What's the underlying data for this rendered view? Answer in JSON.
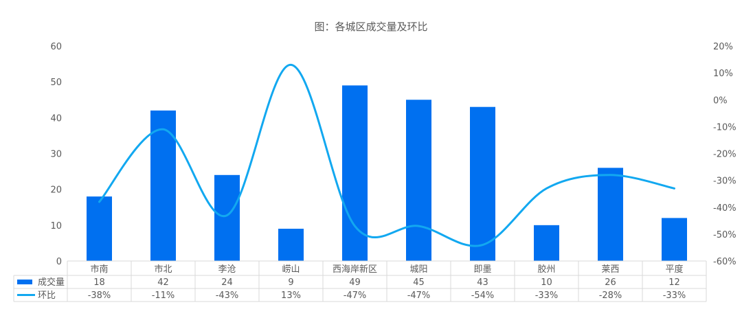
{
  "chart_data": {
    "type": "bar",
    "title": "图：各城区成交量及环比",
    "categories": [
      "市南",
      "市北",
      "李沧",
      "崂山",
      "西海岸新区",
      "城阳",
      "即墨",
      "胶州",
      "莱西",
      "平度"
    ],
    "series": [
      {
        "name": "成交量",
        "type": "bar",
        "axis": "left",
        "color": "#0070f0",
        "values": [
          18,
          42,
          24,
          9,
          49,
          45,
          43,
          10,
          26,
          12
        ]
      },
      {
        "name": "环比",
        "type": "line",
        "axis": "right",
        "color": "#12a8f0",
        "smooth": true,
        "values": [
          -0.38,
          -0.11,
          -0.43,
          0.13,
          -0.47,
          -0.47,
          -0.54,
          -0.33,
          -0.28,
          -0.33
        ],
        "labels": [
          "-38%",
          "-11%",
          "-43%",
          "13%",
          "-47%",
          "-47%",
          "-54%",
          "-33%",
          "-28%",
          "-33%"
        ]
      }
    ],
    "y_left": {
      "ylim": [
        0,
        60
      ],
      "ticks": [
        0,
        10,
        20,
        30,
        40,
        50,
        60
      ]
    },
    "y_right": {
      "ylim": [
        -0.6,
        0.2
      ],
      "ticks": [
        -0.6,
        -0.5,
        -0.4,
        -0.3,
        -0.2,
        -0.1,
        0,
        0.1,
        0.2
      ],
      "tick_labels": [
        "-60%",
        "-50%",
        "-40%",
        "-30%",
        "-20%",
        "-10%",
        "0%",
        "10%",
        "20%"
      ]
    },
    "grid": false,
    "legend": "data-table-bottom"
  }
}
